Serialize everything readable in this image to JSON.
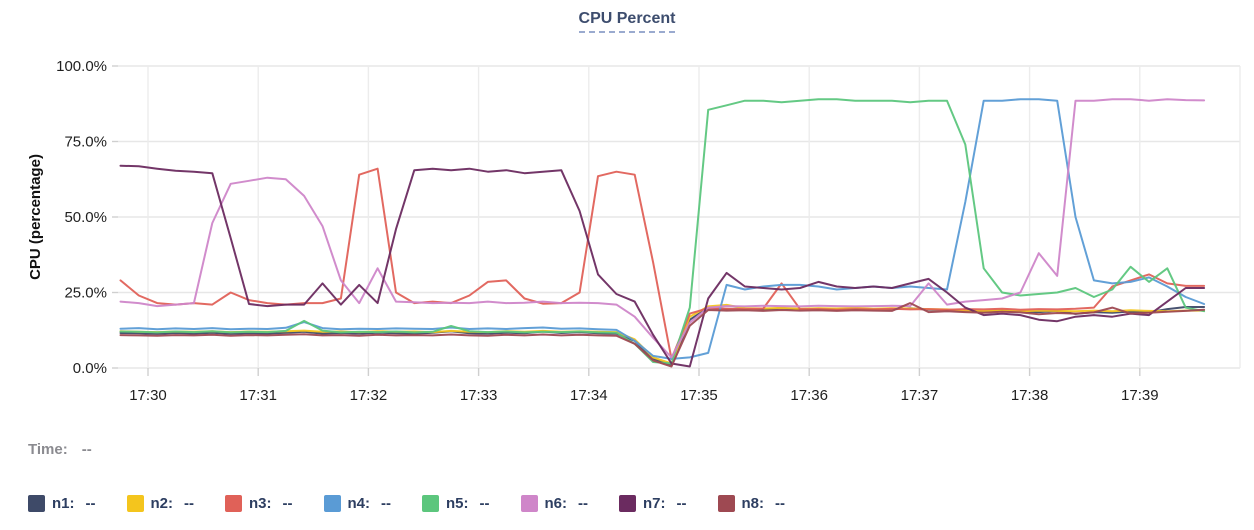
{
  "title": "CPU Percent",
  "time_row": {
    "label": "Time:",
    "value": "--"
  },
  "legend": {
    "items": [
      {
        "label": "n1:",
        "value": "--",
        "color": "#3e4a68"
      },
      {
        "label": "n2:",
        "value": "--",
        "color": "#f4c51d"
      },
      {
        "label": "n3:",
        "value": "--",
        "color": "#e06158"
      },
      {
        "label": "n4:",
        "value": "--",
        "color": "#5a9bd5"
      },
      {
        "label": "n5:",
        "value": "--",
        "color": "#5cc67d"
      },
      {
        "label": "n6:",
        "value": "--",
        "color": "#cf86c9"
      },
      {
        "label": "n7:",
        "value": "--",
        "color": "#6b2b60"
      },
      {
        "label": "n8:",
        "value": "--",
        "color": "#9e4952"
      }
    ]
  },
  "chart_data": {
    "type": "line",
    "title": "CPU Percent",
    "xlabel": "",
    "ylabel": "CPU (percentage)",
    "grid": true,
    "legend_position": "bottom",
    "ylim": [
      0,
      100
    ],
    "y_ticks": [
      "0.0%",
      "25.0%",
      "50.0%",
      "75.0%",
      "100.0%"
    ],
    "y_tick_values": [
      0,
      25,
      50,
      75,
      100
    ],
    "x_ticks": [
      "17:30",
      "17:31",
      "17:32",
      "17:33",
      "17:34",
      "17:35",
      "17:36",
      "17:37",
      "17:38",
      "17:39"
    ],
    "x_start_offset_s": -15,
    "x_interval_s": 10,
    "series": [
      {
        "name": "n1",
        "color": "#3e4a68",
        "values": [
          11.6,
          11.5,
          11.3,
          11.6,
          11.4,
          11.7,
          11.3,
          11.5,
          11.4,
          11.7,
          12.0,
          11.4,
          11.6,
          11.4,
          11.7,
          11.5,
          11.4,
          11.7,
          12.2,
          11.5,
          11.4,
          11.7,
          11.5,
          12.1,
          11.6,
          11.9,
          11.5,
          11.4,
          9.0,
          3.0,
          1.0,
          16.0,
          19.9,
          19.5,
          19.7,
          19.4,
          19.8,
          19.5,
          19.7,
          19.4,
          19.6,
          19.5,
          19.4,
          19.8,
          19.3,
          19.2,
          18.8,
          18.6,
          19.0,
          18.7,
          18.5,
          18.9,
          17.9,
          18.5,
          18.3,
          18.7,
          18.4,
          19.5,
          20.2,
          20.2
        ]
      },
      {
        "name": "n2",
        "color": "#f4c51d",
        "values": [
          12.2,
          12.0,
          11.9,
          12.1,
          12.0,
          12.2,
          11.9,
          12.1,
          12.0,
          12.2,
          12.4,
          12.0,
          12.1,
          11.9,
          12.2,
          12.0,
          12.1,
          11.9,
          12.3,
          12.0,
          11.9,
          12.2,
          12.0,
          12.3,
          12.0,
          12.2,
          12.0,
          11.9,
          9.5,
          3.5,
          1.5,
          17.0,
          20.4,
          20.9,
          19.8,
          19.7,
          19.9,
          19.6,
          19.8,
          19.7,
          19.9,
          19.6,
          19.8,
          19.7,
          19.5,
          19.4,
          19.0,
          18.9,
          19.2,
          18.8,
          19.0,
          18.9,
          18.8,
          19.0,
          18.8,
          19.1,
          18.9,
          18.8,
          19.0,
          19.0
        ]
      },
      {
        "name": "n3",
        "color": "#e06158",
        "values": [
          29.0,
          24.0,
          21.5,
          21.0,
          21.5,
          21.0,
          25.0,
          22.5,
          21.5,
          21.0,
          21.5,
          21.5,
          23.0,
          64.0,
          66.0,
          25.0,
          21.5,
          22.0,
          21.5,
          24.0,
          28.5,
          29.0,
          23.0,
          21.3,
          21.5,
          25.0,
          63.5,
          65.0,
          64.0,
          35.0,
          3.0,
          18.0,
          19.8,
          19.6,
          19.5,
          19.7,
          28.0,
          19.5,
          19.5,
          19.3,
          19.5,
          19.4,
          19.6,
          19.4,
          19.5,
          19.3,
          19.5,
          19.4,
          19.6,
          19.3,
          19.5,
          19.4,
          19.6,
          20.0,
          27.0,
          29.0,
          31.0,
          28.0,
          27.2,
          27.2
        ]
      },
      {
        "name": "n4",
        "color": "#5a9bd5",
        "values": [
          13.0,
          13.2,
          12.8,
          13.1,
          12.9,
          13.2,
          12.8,
          13.0,
          12.9,
          13.3,
          15.2,
          13.2,
          12.8,
          13.0,
          12.9,
          13.1,
          13.0,
          12.9,
          13.4,
          12.9,
          13.1,
          12.9,
          13.2,
          13.4,
          13.0,
          13.1,
          12.8,
          12.6,
          9.0,
          4.0,
          3.0,
          3.5,
          5.0,
          27.5,
          26.0,
          27.0,
          27.5,
          27.5,
          27.0,
          26.0,
          26.5,
          27.0,
          26.5,
          27.0,
          26.5,
          26.0,
          55.0,
          88.5,
          88.5,
          89.0,
          89.0,
          88.5,
          50.0,
          29.0,
          28.0,
          28.5,
          30.0,
          27.0,
          23.5,
          21.2
        ]
      },
      {
        "name": "n5",
        "color": "#5cc67d",
        "values": [
          12.1,
          12.0,
          11.8,
          12.1,
          11.9,
          12.2,
          11.8,
          12.0,
          11.9,
          12.3,
          15.6,
          12.4,
          11.8,
          12.0,
          11.9,
          12.1,
          11.8,
          12.0,
          13.9,
          12.2,
          11.9,
          12.1,
          11.8,
          12.0,
          11.9,
          12.1,
          11.8,
          11.7,
          8.0,
          2.0,
          1.5,
          20.0,
          85.5,
          87.0,
          88.5,
          88.5,
          88.0,
          88.5,
          89.0,
          89.0,
          88.5,
          88.5,
          88.5,
          88.0,
          88.5,
          88.5,
          74.0,
          33.0,
          25.0,
          24.0,
          24.5,
          25.0,
          26.5,
          23.5,
          26.0,
          33.5,
          28.5,
          33.0,
          20.0,
          18.8
        ]
      },
      {
        "name": "n6",
        "color": "#cf86c9",
        "values": [
          22.0,
          21.5,
          20.5,
          21.0,
          21.5,
          48.0,
          61.0,
          62.0,
          63.0,
          62.5,
          57.0,
          47.0,
          29.0,
          21.5,
          33.0,
          22.0,
          21.8,
          21.5,
          21.6,
          21.5,
          22.0,
          21.5,
          21.6,
          22.0,
          21.5,
          21.6,
          21.5,
          21.0,
          17.0,
          10.0,
          3.5,
          15.0,
          20.0,
          20.5,
          20.4,
          20.6,
          20.5,
          20.4,
          20.6,
          20.5,
          20.4,
          20.5,
          20.6,
          20.5,
          28.0,
          21.0,
          22.0,
          22.5,
          23.0,
          25.0,
          38.0,
          30.5,
          88.5,
          88.5,
          89.0,
          89.0,
          88.5,
          89.0,
          88.7,
          88.6
        ]
      },
      {
        "name": "n7",
        "color": "#6b2b60",
        "values": [
          67.0,
          66.8,
          66.0,
          65.3,
          65.0,
          64.5,
          43.0,
          21.2,
          20.5,
          21.0,
          21.0,
          28.0,
          21.0,
          27.5,
          21.5,
          46.0,
          65.5,
          66.0,
          65.5,
          66.0,
          65.0,
          65.5,
          64.5,
          65.0,
          65.5,
          52.0,
          31.0,
          24.5,
          22.0,
          11.0,
          1.5,
          0.5,
          23.0,
          31.5,
          27.0,
          26.5,
          26.0,
          26.5,
          28.5,
          27.0,
          26.5,
          27.0,
          26.5,
          28.0,
          29.5,
          25.0,
          20.0,
          17.5,
          18.0,
          17.5,
          16.0,
          15.5,
          17.0,
          17.5,
          17.0,
          18.0,
          17.5,
          22.0,
          26.5,
          26.5
        ]
      },
      {
        "name": "n8",
        "color": "#9e4952",
        "values": [
          10.9,
          10.8,
          10.7,
          10.9,
          10.8,
          11.0,
          10.7,
          10.9,
          10.8,
          11.0,
          11.2,
          10.8,
          10.9,
          10.7,
          11.0,
          10.8,
          10.9,
          10.8,
          11.1,
          10.8,
          10.7,
          11.0,
          10.8,
          11.1,
          10.8,
          11.0,
          10.8,
          10.7,
          8.0,
          2.5,
          0.5,
          14.0,
          19.2,
          19.0,
          19.1,
          18.9,
          19.2,
          19.0,
          19.1,
          18.9,
          19.1,
          19.0,
          18.9,
          21.5,
          18.5,
          18.8,
          18.5,
          18.3,
          18.6,
          18.4,
          17.8,
          18.2,
          18.0,
          18.4,
          20.0,
          18.0,
          18.3,
          18.6,
          18.9,
          19.3
        ]
      }
    ]
  }
}
